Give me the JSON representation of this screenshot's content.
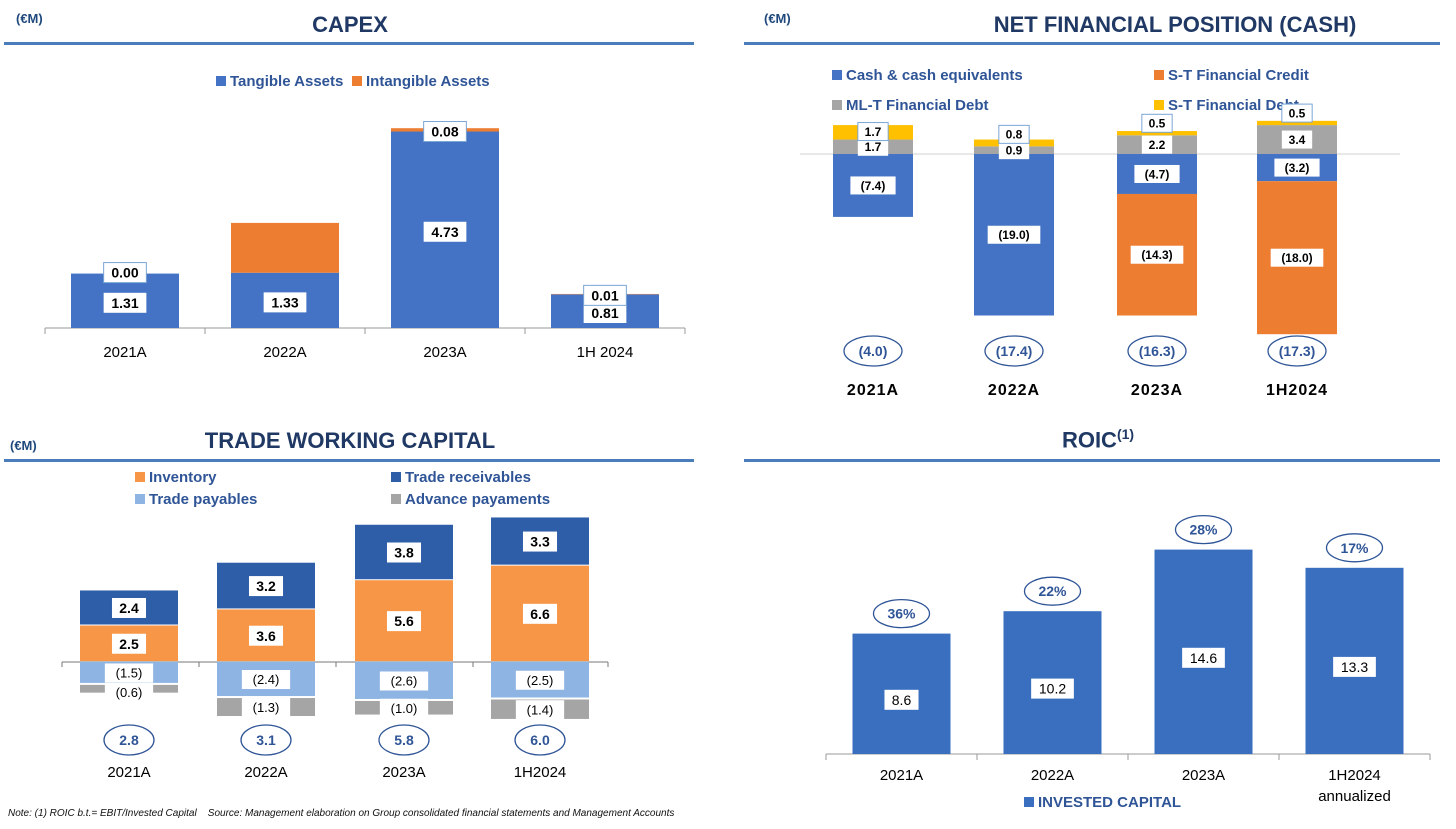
{
  "colors": {
    "blue": "#4472c4",
    "orange": "#ed7d31",
    "gray": "#a5a5a5",
    "yellow": "#ffc000",
    "darkblue": "#2e5ea8",
    "lightorange": "#f79646",
    "lightblue": "#8eb4e3",
    "roicblue": "#3a6fbf",
    "title": "#1f3864",
    "rule": "#4a7ebb",
    "legendtext": "#2f5597"
  },
  "capex": {
    "unit": "(€M)",
    "title": "CAPEX",
    "chart_data": {
      "type": "bar",
      "categories": [
        "2021A",
        "2022A",
        "2023A",
        "1H 2024"
      ],
      "series": [
        {
          "name": "Tangible Assets",
          "values": [
            1.31,
            1.33,
            4.73,
            0.81
          ],
          "labels": [
            "1.31",
            "1.33",
            "4.73",
            "0.81"
          ]
        },
        {
          "name": "Intangible Assets",
          "values": [
            0.0,
            1.2,
            0.08,
            0.01
          ],
          "labels": [
            "0.00",
            "",
            "0.08",
            "0.01"
          ]
        }
      ],
      "ylim": [
        0,
        5.2
      ]
    }
  },
  "nfp": {
    "unit": "(€M)",
    "title": "NET FINANCIAL POSITION (CASH)",
    "chart_data": {
      "type": "bar",
      "categories": [
        "2021A",
        "2022A",
        "2023A",
        "1H2024"
      ],
      "series": [
        {
          "name": "Cash & cash equivalents",
          "values": [
            -7.4,
            -19.0,
            -4.7,
            -3.2
          ],
          "labels": [
            "(7.4)",
            "(19.0)",
            "(4.7)",
            "(3.2)"
          ]
        },
        {
          "name": "S-T Financial Credit",
          "values": [
            0,
            0,
            -14.3,
            -18.0
          ],
          "labels": [
            "",
            "",
            "(14.3)",
            "(18.0)"
          ]
        },
        {
          "name": "ML-T Financial Debt",
          "values": [
            1.7,
            0.9,
            2.2,
            3.4
          ],
          "labels": [
            "1.7",
            "0.9",
            "2.2",
            "3.4"
          ]
        },
        {
          "name": "S-T Financial Debt",
          "values": [
            1.7,
            0.8,
            0.5,
            0.5
          ],
          "labels": [
            "1.7",
            "0.8",
            "0.5",
            "0.5"
          ]
        }
      ],
      "totals": [
        "(4.0)",
        "(17.4)",
        "(16.3)",
        "(17.3)"
      ],
      "ylim": [
        -21.5,
        4.0
      ]
    }
  },
  "twc": {
    "unit": "(€M)",
    "title": "TRADE WORKING CAPITAL",
    "chart_data": {
      "type": "bar",
      "categories": [
        "2021A",
        "2022A",
        "2023A",
        "1H2024"
      ],
      "series": [
        {
          "name": "Inventory",
          "values": [
            2.5,
            3.6,
            5.6,
            6.6
          ],
          "labels": [
            "2.5",
            "3.6",
            "5.6",
            "6.6"
          ]
        },
        {
          "name": "Trade receivables",
          "values": [
            2.4,
            3.2,
            3.8,
            3.3
          ],
          "labels": [
            "2.4",
            "3.2",
            "3.8",
            "3.3"
          ]
        },
        {
          "name": "Trade payables",
          "values": [
            -1.5,
            -2.4,
            -2.6,
            -2.5
          ],
          "labels": [
            "(1.5)",
            "(2.4)",
            "(2.6)",
            "(2.5)"
          ]
        },
        {
          "name": "Advance payaments",
          "values": [
            -0.6,
            -1.3,
            -1.0,
            -1.4
          ],
          "labels": [
            "(0.6)",
            "(1.3)",
            "(1.0)",
            "(1.4)"
          ]
        }
      ],
      "totals": [
        "2.8",
        "3.1",
        "5.8",
        "6.0"
      ],
      "ylim": [
        -4.0,
        10.0
      ]
    }
  },
  "roic": {
    "title": "ROIC",
    "title_sup": "(1)",
    "chart_data": {
      "type": "bar",
      "categories": [
        "2021A",
        "2022A",
        "2023A",
        "1H2024"
      ],
      "category_sublabels": [
        "",
        "",
        "",
        "annualized"
      ],
      "series": [
        {
          "name": "INVESTED CAPITAL",
          "values": [
            8.6,
            10.2,
            14.6,
            13.3
          ],
          "labels": [
            "8.6",
            "10.2",
            "14.6",
            "13.3"
          ]
        }
      ],
      "roic": [
        "36%",
        "22%",
        "28%",
        "17%"
      ],
      "ylim": [
        0,
        15.8
      ]
    }
  },
  "note": "Note: (1) ROIC b.t.= EBIT/Invested Capital    Source: Management elaboration on Group consolidated financial statements and Management Accounts"
}
